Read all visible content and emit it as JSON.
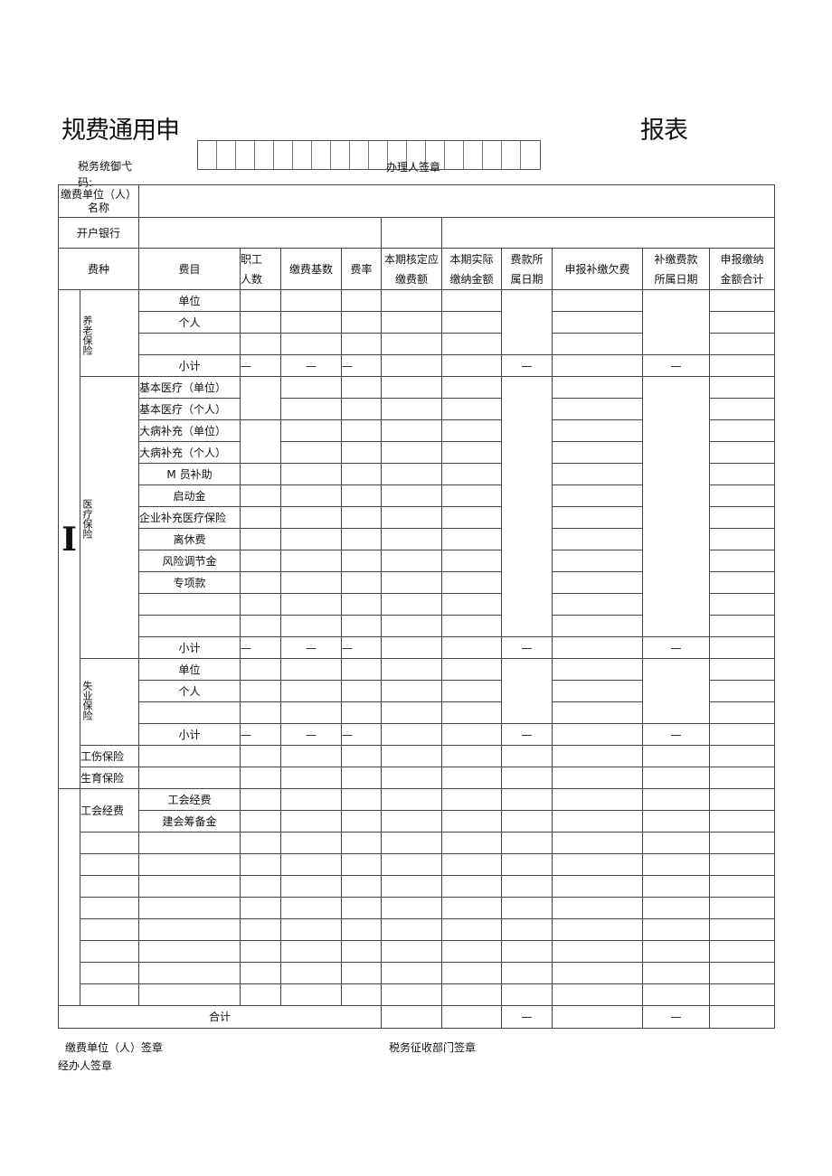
{
  "title_left": "规费通用申",
  "title_right": "报表",
  "tax_code_label": "税务统御弋",
  "tax_code_label_2": "码:",
  "handler_sign_label": "办理人签章",
  "payer_name_label": "缴费单位（人）名称",
  "bank_label": "开户银行",
  "headers": {
    "fee_type": "费种",
    "fee_item": "费目",
    "staff_count_1": "职工",
    "staff_count_2": "人数",
    "base": "缴费基数",
    "rate": "费率",
    "assessed_1": "本期核定应",
    "assessed_2": "缴费额",
    "actual_1": "本期实际",
    "actual_2": "缴纳金额",
    "period_1": "费款所",
    "period_2": "属日期",
    "arrears": "申报补缴欠费",
    "arrears_period_1": "补缴费款",
    "arrears_period_2": "所属日期",
    "total_1": "申报缴纳",
    "total_2": "金额合计"
  },
  "roman_numeral": "I",
  "dash": "—",
  "subtotal_label": "小计",
  "sections": {
    "pension": {
      "label": "养老保险",
      "items": [
        "单位",
        "个人",
        ""
      ]
    },
    "medical": {
      "label": "医疗保险",
      "items": [
        "基本医疗（单位）",
        "基本医疗（个人）",
        "大病补充（单位）",
        "大病补充（个人）",
        "M 员补助",
        "启动金",
        "企业补充医疗保险",
        "离休费",
        "风险调节金",
        "专项款",
        "",
        ""
      ]
    },
    "unemployment": {
      "label": "失业保险",
      "items": [
        "单位",
        "个人",
        ""
      ]
    },
    "injury": {
      "label": "工伤保险"
    },
    "maternity": {
      "label": "生育保险"
    },
    "union": {
      "label": "工会经费",
      "items": [
        "工会经费",
        "建会筹备金"
      ]
    }
  },
  "blank_rows": 8,
  "total_label": "合计",
  "footer": {
    "payer_sign": "缴费单位（人）签章",
    "tax_dept_sign": "税务征收部门签章",
    "handler_sign": "经办人签章"
  }
}
